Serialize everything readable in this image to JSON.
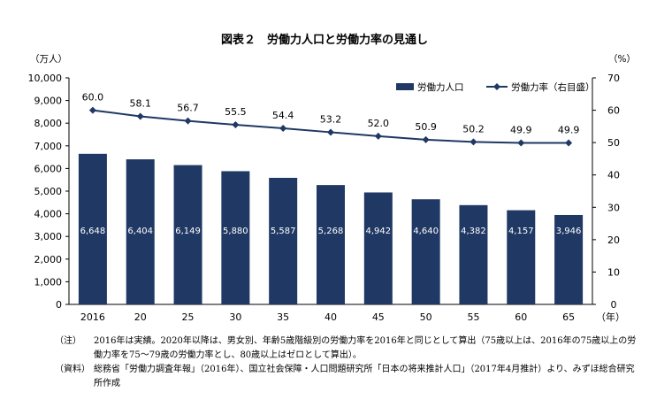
{
  "title": "図表２　労働力人口と労働力率の見通し",
  "left_unit": "（万人）",
  "right_unit": "（%）",
  "x_unit": "（年）",
  "notes": [
    {
      "tag": "（注）",
      "text": "2016年は実績。2020年以降は、男女別、年齢5歳階級別の労働力率を2016年と同じとして算出（75歳以上は、2016年の75歳以上の労働力率を75〜79歳の労働力率とし、80歳以上はゼロとして算出）。"
    },
    {
      "tag": "（資料）",
      "text": "総務省「労働力調査年報」（2016年）、国立社会保障・人口問題研究所「日本の将来推計人口」（2017年4月推計）より、みずほ総合研究所作成"
    }
  ],
  "chart_data": {
    "type": "bar",
    "categories": [
      "2016",
      "20",
      "25",
      "30",
      "35",
      "40",
      "45",
      "50",
      "55",
      "60",
      "65"
    ],
    "series": [
      {
        "name": "労働力人口",
        "type": "bar",
        "axis": "left",
        "values": [
          6648,
          6404,
          6149,
          5880,
          5587,
          5268,
          4942,
          4640,
          4382,
          4157,
          3946
        ],
        "labels": [
          "6,648",
          "6,404",
          "6,149",
          "5,880",
          "5,587",
          "5,268",
          "4,942",
          "4,640",
          "4,382",
          "4,157",
          "3,946"
        ],
        "color": "#1f3864"
      },
      {
        "name": "労働力率（右目盛）",
        "type": "line",
        "axis": "right",
        "values": [
          60.0,
          58.1,
          56.7,
          55.5,
          54.4,
          53.2,
          52.0,
          50.9,
          50.2,
          49.9,
          49.9
        ],
        "labels": [
          "60.0",
          "58.1",
          "56.7",
          "55.5",
          "54.4",
          "53.2",
          "52.0",
          "50.9",
          "50.2",
          "49.9",
          "49.9"
        ],
        "color": "#1f3864"
      }
    ],
    "ylim": [
      0,
      10000
    ],
    "y_ticks": [
      "0",
      "1,000",
      "2,000",
      "3,000",
      "4,000",
      "5,000",
      "6,000",
      "7,000",
      "8,000",
      "9,000",
      "10,000"
    ],
    "y2lim": [
      0,
      70
    ],
    "y2_ticks": [
      "0",
      "10",
      "20",
      "30",
      "40",
      "50",
      "60",
      "70"
    ],
    "grid": false,
    "legend": "top-right"
  }
}
